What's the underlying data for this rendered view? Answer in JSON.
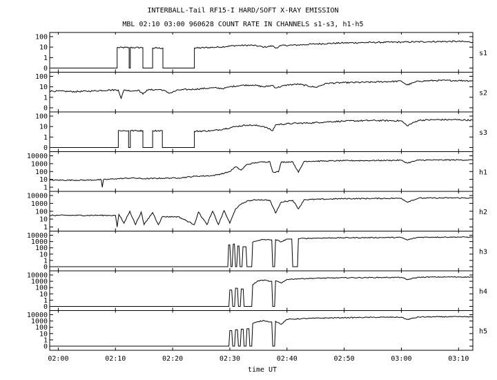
{
  "chart_data": {
    "type": "line",
    "title": "INTERBALL-Tail RF15-I HARD/SOFT X-RAY EMISSION",
    "subtitle": "MBL 02:10 03:00 960628  COUNT RATE IN CHANNELS s1-s3, h1-h5",
    "xlabel": "time UT",
    "x_ticks": [
      "02:00",
      "02:10",
      "02:20",
      "02:30",
      "02:40",
      "02:50",
      "03:00",
      "03:10"
    ],
    "x_tick_minutes": [
      0,
      10,
      20,
      30,
      40,
      50,
      60,
      70
    ],
    "x_range_minutes": [
      -1.5,
      72.5
    ],
    "y_scale": "log-offset",
    "panels": [
      {
        "name": "s1",
        "y_ticks": [
          "100",
          "10",
          "1",
          "0"
        ],
        "y_max": 100,
        "points": [
          [
            -1.5,
            0
          ],
          [
            10.3,
            0
          ],
          [
            10.3,
            9
          ],
          [
            12.4,
            9
          ],
          [
            12.4,
            0
          ],
          [
            12.6,
            0
          ],
          [
            12.6,
            9
          ],
          [
            14.8,
            9
          ],
          [
            14.8,
            0
          ],
          [
            16.5,
            0
          ],
          [
            16.5,
            8
          ],
          [
            18.3,
            8
          ],
          [
            18.3,
            0
          ],
          [
            23.8,
            0
          ],
          [
            23.8,
            8
          ],
          [
            28,
            10
          ],
          [
            31,
            14
          ],
          [
            34,
            15
          ],
          [
            36,
            10
          ],
          [
            37.5,
            13
          ],
          [
            38,
            8
          ],
          [
            39,
            14
          ],
          [
            42,
            16
          ],
          [
            45,
            20
          ],
          [
            50,
            25
          ],
          [
            55,
            28
          ],
          [
            60,
            30
          ],
          [
            65,
            33
          ],
          [
            70,
            35
          ],
          [
            72.5,
            30
          ]
        ]
      },
      {
        "name": "s2",
        "y_ticks": [
          "100",
          "10",
          "1",
          "0"
        ],
        "y_max": 100,
        "points": [
          [
            -1.5,
            4
          ],
          [
            3,
            3.5
          ],
          [
            6,
            4
          ],
          [
            9,
            5
          ],
          [
            10.5,
            5
          ],
          [
            11,
            0.8
          ],
          [
            11.5,
            5
          ],
          [
            13,
            4
          ],
          [
            14,
            5
          ],
          [
            14.8,
            2
          ],
          [
            15.5,
            5
          ],
          [
            18,
            5.5
          ],
          [
            19.5,
            2.5
          ],
          [
            21,
            5
          ],
          [
            24,
            6
          ],
          [
            27,
            8
          ],
          [
            29,
            7
          ],
          [
            30,
            10
          ],
          [
            32,
            14
          ],
          [
            34,
            15
          ],
          [
            36,
            10
          ],
          [
            37.5,
            14
          ],
          [
            38,
            8
          ],
          [
            40,
            15
          ],
          [
            42,
            18
          ],
          [
            45,
            9
          ],
          [
            47,
            22
          ],
          [
            50,
            25
          ],
          [
            55,
            28
          ],
          [
            60,
            35
          ],
          [
            61,
            15
          ],
          [
            63,
            35
          ],
          [
            66,
            40
          ],
          [
            70,
            40
          ],
          [
            72.5,
            38
          ]
        ]
      },
      {
        "name": "s3",
        "y_ticks": [
          "100",
          "10",
          "1",
          "0"
        ],
        "y_max": 100,
        "points": [
          [
            -1.5,
            0
          ],
          [
            10.5,
            0
          ],
          [
            10.5,
            4
          ],
          [
            12.3,
            4
          ],
          [
            12.3,
            0
          ],
          [
            12.6,
            0
          ],
          [
            12.6,
            4
          ],
          [
            14.8,
            4
          ],
          [
            14.8,
            0
          ],
          [
            16.5,
            0
          ],
          [
            16.5,
            4
          ],
          [
            18.2,
            4
          ],
          [
            18.2,
            0
          ],
          [
            23.8,
            0
          ],
          [
            23.8,
            3.5
          ],
          [
            27,
            4
          ],
          [
            29,
            6
          ],
          [
            31,
            10
          ],
          [
            33,
            14
          ],
          [
            35,
            12
          ],
          [
            36,
            10
          ],
          [
            37.5,
            4
          ],
          [
            38,
            15
          ],
          [
            41,
            20
          ],
          [
            44,
            22
          ],
          [
            47,
            28
          ],
          [
            50,
            33
          ],
          [
            55,
            38
          ],
          [
            60,
            35
          ],
          [
            61,
            12
          ],
          [
            63,
            40
          ],
          [
            66,
            45
          ],
          [
            70,
            45
          ],
          [
            72.5,
            40
          ]
        ]
      },
      {
        "name": "h1",
        "y_ticks": [
          "10000",
          "1000",
          "100",
          "10",
          "1"
        ],
        "y_max": 10000,
        "points": [
          [
            -1.5,
            8
          ],
          [
            5,
            8
          ],
          [
            7.5,
            9
          ],
          [
            7.7,
            0.5
          ],
          [
            7.9,
            9
          ],
          [
            10,
            12
          ],
          [
            13,
            15
          ],
          [
            15,
            12
          ],
          [
            18,
            14
          ],
          [
            21,
            15
          ],
          [
            24,
            25
          ],
          [
            27,
            30
          ],
          [
            29,
            60
          ],
          [
            30,
            100
          ],
          [
            31,
            400
          ],
          [
            32,
            150
          ],
          [
            33,
            800
          ],
          [
            35,
            1500
          ],
          [
            37,
            1800
          ],
          [
            37.5,
            90
          ],
          [
            38.5,
            90
          ],
          [
            39,
            1600
          ],
          [
            41,
            1700
          ],
          [
            42,
            80
          ],
          [
            43,
            2000
          ],
          [
            47,
            2200
          ],
          [
            50,
            2400
          ],
          [
            55,
            2500
          ],
          [
            60,
            2700
          ],
          [
            61,
            1200
          ],
          [
            63,
            2800
          ],
          [
            66,
            2900
          ],
          [
            70,
            3000
          ],
          [
            72.5,
            2900
          ]
        ]
      },
      {
        "name": "h2",
        "y_ticks": [
          "10000",
          "1000",
          "100",
          "10",
          "1"
        ],
        "y_max": 10000,
        "points": [
          [
            -1.5,
            30
          ],
          [
            9,
            30
          ],
          [
            10,
            30
          ],
          [
            10.3,
            1
          ],
          [
            10.6,
            40
          ],
          [
            11.5,
            3
          ],
          [
            12.5,
            100
          ],
          [
            13.5,
            2
          ],
          [
            14.5,
            80
          ],
          [
            15,
            2
          ],
          [
            16.5,
            70
          ],
          [
            17.5,
            2
          ],
          [
            18.2,
            20
          ],
          [
            21,
            20
          ],
          [
            23.8,
            2
          ],
          [
            24.5,
            80
          ],
          [
            26,
            2
          ],
          [
            27,
            100
          ],
          [
            28,
            2
          ],
          [
            29,
            120
          ],
          [
            30,
            3
          ],
          [
            31,
            200
          ],
          [
            32,
            800
          ],
          [
            33,
            2000
          ],
          [
            35,
            3000
          ],
          [
            37,
            2500
          ],
          [
            38,
            60
          ],
          [
            39,
            1500
          ],
          [
            41,
            2500
          ],
          [
            42,
            200
          ],
          [
            43,
            3000
          ],
          [
            47,
            3500
          ],
          [
            50,
            4000
          ],
          [
            55,
            4200
          ],
          [
            60,
            4500
          ],
          [
            61,
            1500
          ],
          [
            63,
            4600
          ],
          [
            66,
            4800
          ],
          [
            70,
            5000
          ],
          [
            72.5,
            4800
          ]
        ]
      },
      {
        "name": "h3",
        "y_ticks": [
          "10000",
          "1000",
          "100",
          "10",
          "1",
          "0"
        ],
        "y_max": 10000,
        "points": [
          [
            -1.5,
            0
          ],
          [
            29.5,
            0
          ],
          [
            29.8,
            300
          ],
          [
            30.2,
            0
          ],
          [
            30.6,
            400
          ],
          [
            31,
            0
          ],
          [
            31.4,
            200
          ],
          [
            31.8,
            0
          ],
          [
            32.3,
            150
          ],
          [
            33,
            0
          ],
          [
            34,
            800
          ],
          [
            35,
            1500
          ],
          [
            36,
            2200
          ],
          [
            37,
            1800
          ],
          [
            37.5,
            0
          ],
          [
            38,
            2000
          ],
          [
            39,
            900
          ],
          [
            40,
            2500
          ],
          [
            41,
            0
          ],
          [
            42,
            3000
          ],
          [
            45,
            3500
          ],
          [
            50,
            4000
          ],
          [
            55,
            4200
          ],
          [
            60,
            4500
          ],
          [
            61,
            1800
          ],
          [
            63,
            4800
          ],
          [
            66,
            5000
          ],
          [
            70,
            5200
          ],
          [
            72.5,
            5000
          ]
        ]
      },
      {
        "name": "h4",
        "y_ticks": [
          "10000",
          "1000",
          "100",
          "10",
          "1",
          "0"
        ],
        "y_max": 10000,
        "points": [
          [
            -1.5,
            0
          ],
          [
            29.5,
            0
          ],
          [
            30,
            40
          ],
          [
            30.5,
            0
          ],
          [
            31,
            80
          ],
          [
            31.5,
            0
          ],
          [
            32,
            60
          ],
          [
            32.5,
            0
          ],
          [
            34,
            300
          ],
          [
            35,
            1200
          ],
          [
            36,
            1500
          ],
          [
            37,
            1000
          ],
          [
            37.5,
            0
          ],
          [
            38,
            1200
          ],
          [
            39,
            500
          ],
          [
            40,
            2000
          ],
          [
            42,
            2500
          ],
          [
            45,
            3000
          ],
          [
            50,
            3600
          ],
          [
            55,
            3900
          ],
          [
            60,
            4200
          ],
          [
            61,
            1800
          ],
          [
            63,
            4400
          ],
          [
            66,
            4700
          ],
          [
            70,
            4900
          ],
          [
            72.5,
            4700
          ]
        ]
      },
      {
        "name": "h5",
        "y_ticks": [
          "10000",
          "1000",
          "100",
          "10",
          "1",
          "0"
        ],
        "y_max": 10000,
        "points": [
          [
            -1.5,
            0
          ],
          [
            29.5,
            0
          ],
          [
            30,
            30
          ],
          [
            30.5,
            0
          ],
          [
            31,
            40
          ],
          [
            31.5,
            0
          ],
          [
            32,
            50
          ],
          [
            32.5,
            0
          ],
          [
            33,
            60
          ],
          [
            33.5,
            0
          ],
          [
            34,
            400
          ],
          [
            35,
            800
          ],
          [
            36,
            1200
          ],
          [
            37,
            700
          ],
          [
            37.5,
            0
          ],
          [
            38,
            900
          ],
          [
            39,
            300
          ],
          [
            40,
            1800
          ],
          [
            42,
            2200
          ],
          [
            45,
            2800
          ],
          [
            50,
            3400
          ],
          [
            55,
            3800
          ],
          [
            60,
            4100
          ],
          [
            61,
            1700
          ],
          [
            63,
            4300
          ],
          [
            66,
            4600
          ],
          [
            70,
            4800
          ],
          [
            72.5,
            4600
          ]
        ]
      }
    ]
  }
}
